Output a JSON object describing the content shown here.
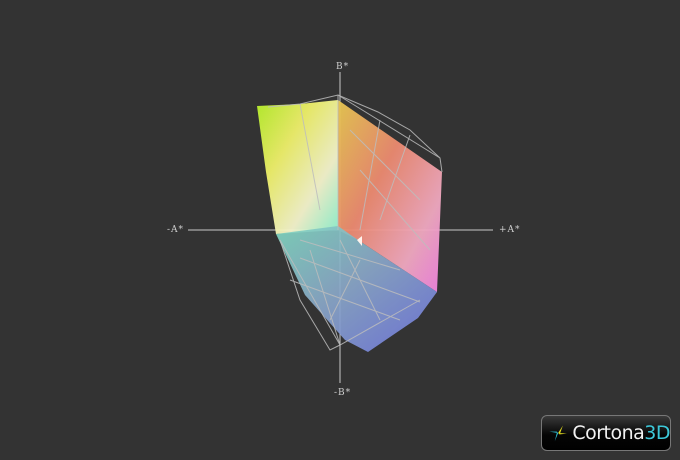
{
  "axes": {
    "top_label": "B*",
    "left_label": "-A*",
    "right_label": "+A*",
    "bottom_label": "-B*"
  },
  "logo": {
    "brand": "Cortona",
    "suffix": "3D"
  },
  "colors": {
    "background": "#333333",
    "axis": "#c8c8c8",
    "wireframe": "#bdbdbd",
    "logo_accent": "#3cc7d8"
  }
}
